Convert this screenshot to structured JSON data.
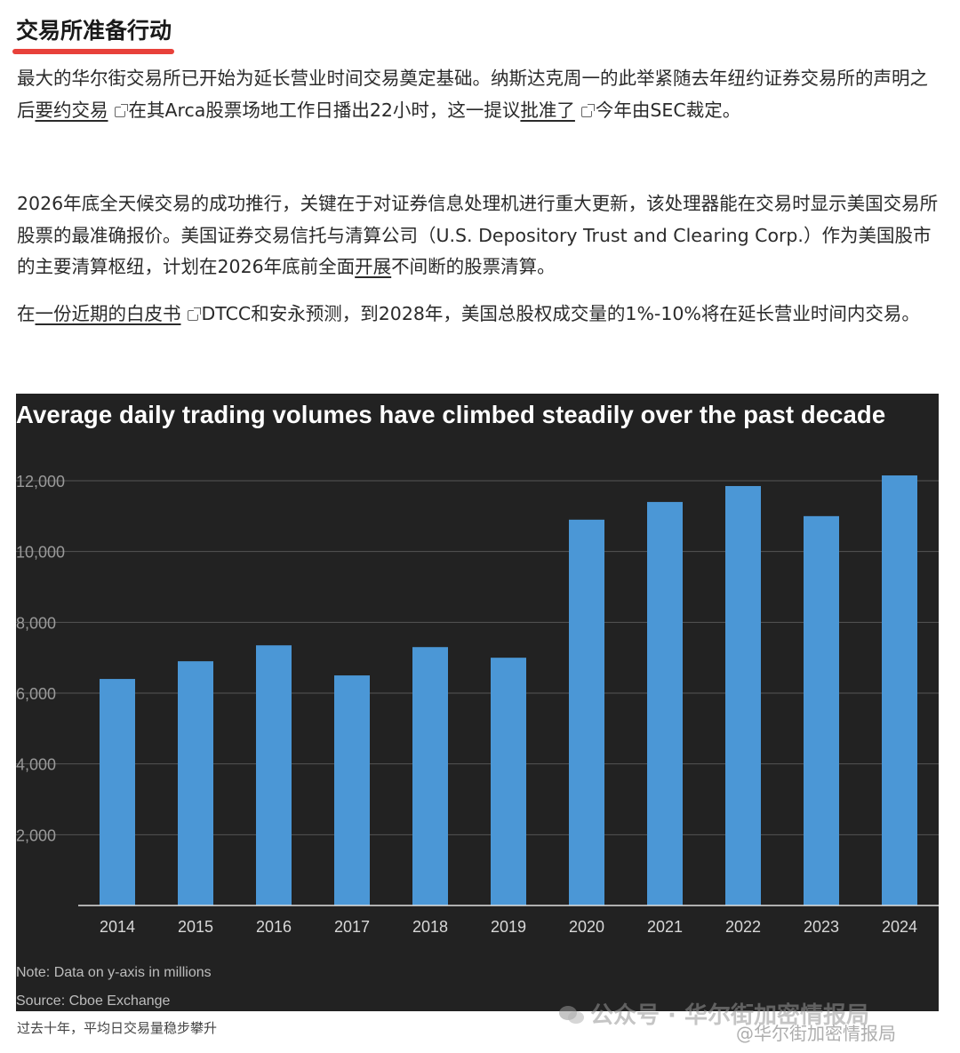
{
  "article": {
    "heading": "交易所准备行动",
    "p1": {
      "t1": "最大的华尔街交易所已开始为延长营业时间交易奠定基础。纳斯达克周一的此举紧随去年纽约证券交易所的声明之后",
      "link1": "要约交易",
      "t2": "在其Arca股票场地工作日播出22小时，这一提议",
      "link2": "批准了",
      "t3": "今年由SEC裁定。"
    },
    "p2": {
      "t1": "2026年底全天候交易的成功推行，关键在于对证券信息处理机进行重大更新，该处理器能在交易时显示美国交易所股票的最准确报价。美国证券交易信托与清算公司（U.S. Depository Trust and Clearing Corp.）作为美国股市的主要清算枢纽，计划在2026年底前全面",
      "link1": "开展",
      "t2": "不间断的股票清算。"
    },
    "p3": {
      "t1": "在",
      "link1": "一份近期的白皮书",
      "t2": "DTCC和安永预测，到2028年，美国总股权成交量的1%-10%将在延长营业时间内交易。"
    }
  },
  "chart_data": {
    "type": "bar",
    "title": "Average daily trading volumes have climbed steadily over the past decade",
    "categories": [
      "2014",
      "2015",
      "2016",
      "2017",
      "2018",
      "2019",
      "2020",
      "2021",
      "2022",
      "2023",
      "2024"
    ],
    "values": [
      6400,
      6900,
      7350,
      6500,
      7300,
      7000,
      10900,
      11400,
      11850,
      11000,
      12150
    ],
    "ylim": [
      0,
      12000
    ],
    "yticks": [
      2000,
      4000,
      6000,
      8000,
      10000,
      12000
    ],
    "ytick_labels": [
      "2,000",
      "4,000",
      "6,000",
      "8,000",
      "10,000",
      "12,000"
    ],
    "note": "Note: Data on y-axis in millions",
    "source": "Source: Cboe Exchange",
    "grid": true,
    "colors": {
      "bar": "#4b97d6",
      "background": "#222222",
      "grid": "#555555"
    }
  },
  "caption": "过去十年，平均日交易量稳步攀升",
  "watermark": {
    "text": "公众号 · 华尔街加密情报局",
    "text2": "@华尔街加密情报局",
    "icon": "wechat-icon"
  }
}
